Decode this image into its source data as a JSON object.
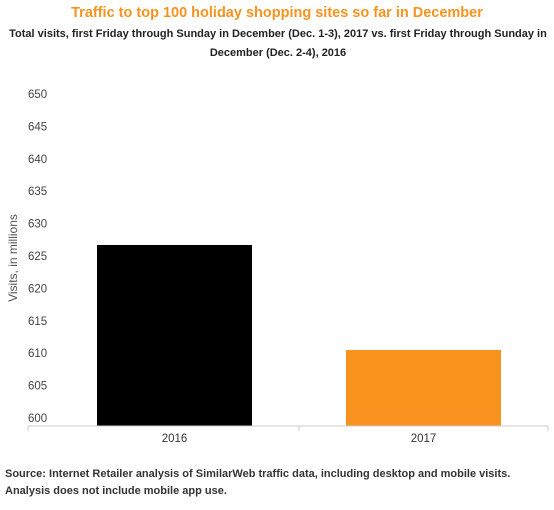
{
  "chart_data": {
    "type": "bar",
    "title": "Traffic to top 100 holiday shopping sites so far in December",
    "subtitle": "Total visits, first Friday through Sunday in December (Dec. 1-3), 2017 vs. first Friday through Sunday in December (Dec. 2-4), 2016",
    "categories": [
      "2016",
      "2017"
    ],
    "values": [
      626.7,
      610.5
    ],
    "bar_colors": [
      "#000000",
      "#f7931e"
    ],
    "xlabel": "",
    "ylabel": "Visits, in millions",
    "ylim": [
      600,
      650
    ],
    "yticks": [
      "650",
      "645",
      "640",
      "635",
      "630",
      "625",
      "620",
      "615",
      "610",
      "605",
      "600"
    ],
    "grid": false,
    "legend": "none"
  },
  "source": "Source: Internet Retailer analysis of SimilarWeb traffic data, including desktop and mobile visits. Analysis does not include mobile app use.",
  "colors": {
    "title": "#f7931e",
    "axis": "#cccccc",
    "text": "#333333"
  }
}
